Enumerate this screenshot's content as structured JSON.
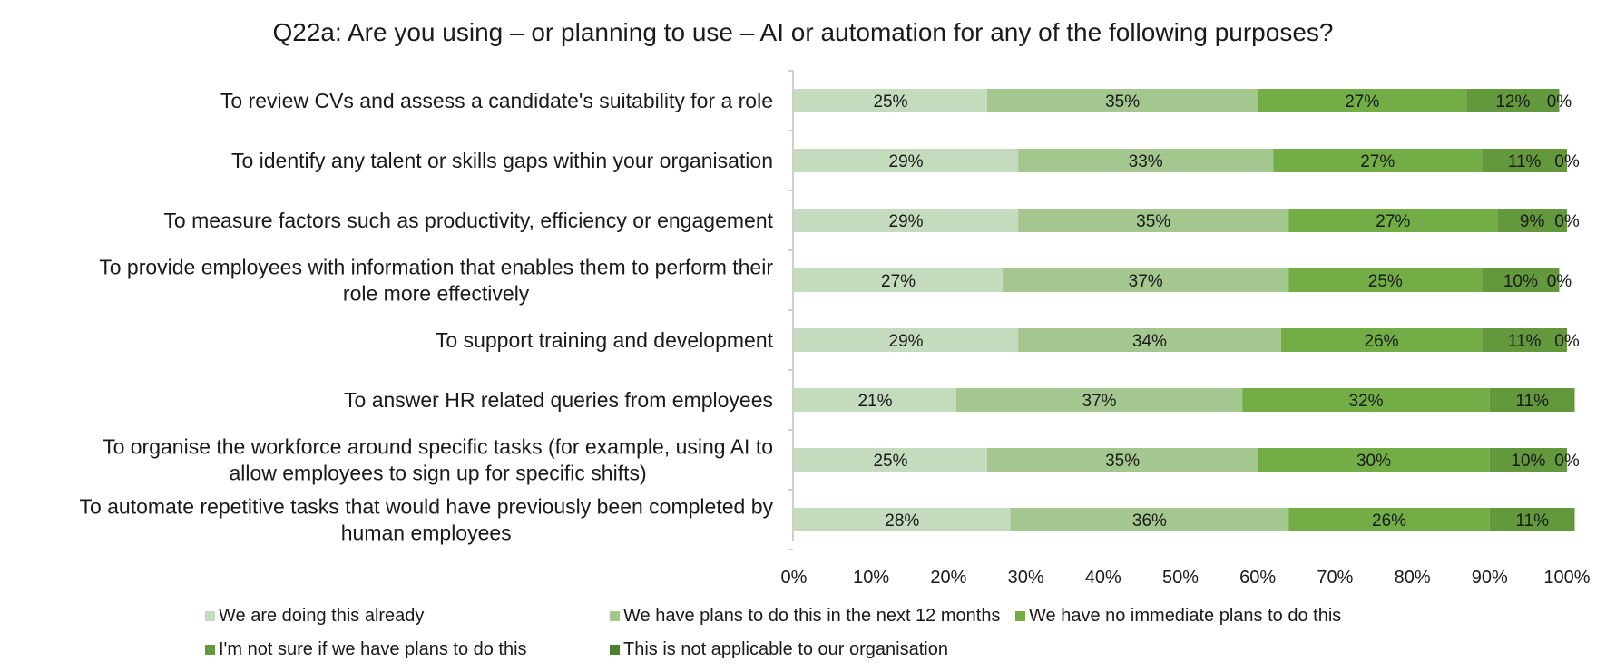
{
  "chart_data": {
    "type": "bar",
    "orientation": "horizontal",
    "stacked": true,
    "title": "Q22a: Are you using – or planning to use – AI or automation for any of the following purposes?",
    "categories": [
      [
        "To review CVs and assess a candidate's suitability for a role"
      ],
      [
        "To identify any talent or skills gaps within your organisation"
      ],
      [
        "To measure factors such as productivity, efficiency or engagement"
      ],
      [
        "To provide employees with information that enables them to perform their",
        "role more effectively"
      ],
      [
        "To support training and development"
      ],
      [
        "To answer HR related queries from employees"
      ],
      [
        "To organise the workforce around specific tasks (for example, using AI to",
        "allow employees to sign up for specific shifts)"
      ],
      [
        "To automate repetitive tasks that would have previously been completed by",
        "human employees"
      ]
    ],
    "series": [
      {
        "name": "We are doing this already",
        "color": "#c5dbbd",
        "values": [
          25,
          29,
          29,
          27,
          29,
          21,
          25,
          28
        ]
      },
      {
        "name": "We have plans to do this in the next 12 months",
        "color": "#a3c78f",
        "values": [
          35,
          33,
          35,
          37,
          34,
          37,
          35,
          36
        ]
      },
      {
        "name": "We have no immediate plans to do this",
        "color": "#72ad46",
        "values": [
          27,
          27,
          27,
          25,
          26,
          32,
          30,
          26
        ]
      },
      {
        "name": "I'm not sure if we have plans to do this",
        "color": "#63993c",
        "values": [
          12,
          11,
          9,
          10,
          11,
          11,
          10,
          11
        ]
      },
      {
        "name": "This is not applicable to our organisation",
        "color": "#4f7e30",
        "values": [
          0,
          0,
          0,
          0,
          0,
          null,
          0,
          null
        ]
      }
    ],
    "xlim": [
      0,
      100
    ],
    "xticks": [
      "0%",
      "10%",
      "20%",
      "30%",
      "40%",
      "50%",
      "60%",
      "70%",
      "80%",
      "90%",
      "100%"
    ],
    "value_suffix": "%",
    "grid": false,
    "legend_position": "bottom"
  }
}
